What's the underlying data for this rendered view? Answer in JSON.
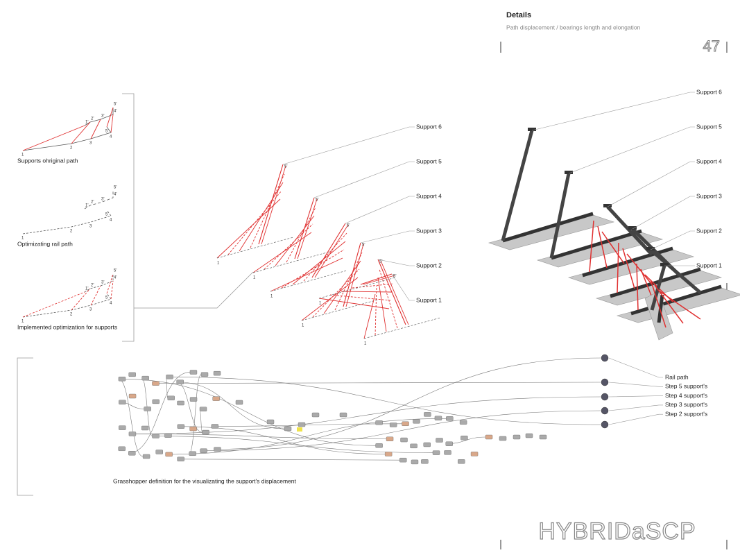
{
  "header": {
    "title": "Details",
    "subtitle": "Path displacement / bearings length and elongation",
    "page_number": "47"
  },
  "point_labels": [
    "1",
    "2",
    "3",
    "4",
    "5",
    "1'",
    "2'",
    "3'",
    "4'",
    "5'"
  ],
  "diagrams": [
    {
      "caption": "Supports ohriginal path"
    },
    {
      "caption": "Optimizating rail path"
    },
    {
      "caption": "Implemented optimization for supports"
    }
  ],
  "center_supports": [
    "Support 6",
    "Support 5",
    "Support 4",
    "Support 3",
    "Support 2",
    "Support 1"
  ],
  "render_supports": [
    "Support 6",
    "Support 5",
    "Support 4",
    "Support 3",
    "Support 2",
    "Support 1"
  ],
  "grasshopper": {
    "caption": "Grasshopper definition for the visualizating the support's displacement",
    "outputs": [
      "Rail path",
      "Step 5 support's",
      "Step 4 support's",
      "Step 3 support's",
      "Step 2 support's"
    ]
  },
  "footer": {
    "logo": "HYBRIDaSCP"
  }
}
